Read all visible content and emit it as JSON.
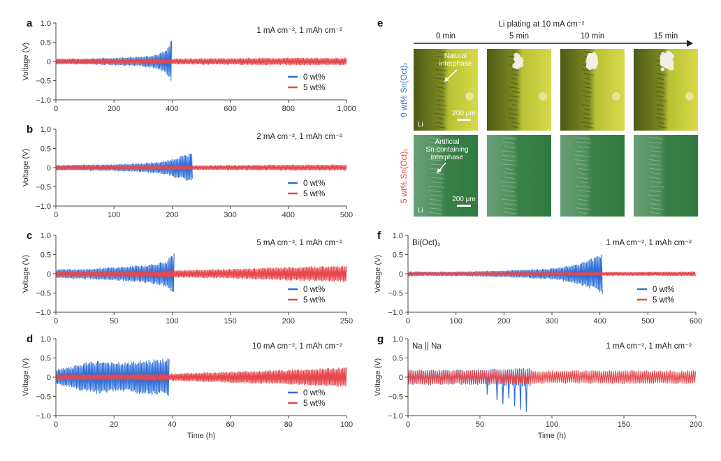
{
  "colors": {
    "blue": "#2f6fd8",
    "red": "#e5484d",
    "axis": "#444444"
  },
  "chart_data": [
    {
      "panel": "a",
      "type": "line",
      "condition": "1 mA cm⁻², 1 mAh cm⁻²",
      "ylabel": "Voltage (V)",
      "xlabel": "",
      "xlim": [
        0,
        1000
      ],
      "ylim": [
        -1.0,
        1.0
      ],
      "xticks": [
        "0",
        "200",
        "400",
        "600",
        "800",
        "1,000"
      ],
      "yticks": [
        "−1.0",
        "−0.5",
        "0",
        "0.5",
        "1.0"
      ],
      "series": [
        {
          "name": "0 wt%",
          "color": "blue",
          "envelope": [
            [
              0,
              0.06
            ],
            [
              100,
              0.08
            ],
            [
              200,
              0.1
            ],
            [
              300,
              0.14
            ],
            [
              350,
              0.2
            ],
            [
              380,
              0.3
            ],
            [
              395,
              0.55
            ],
            [
              400,
              0.6
            ]
          ]
        },
        {
          "name": "5 wt%",
          "color": "red",
          "envelope": [
            [
              0,
              0.08
            ],
            [
              200,
              0.08
            ],
            [
              400,
              0.08
            ],
            [
              600,
              0.09
            ],
            [
              800,
              0.1
            ],
            [
              1000,
              0.1
            ]
          ]
        }
      ]
    },
    {
      "panel": "b",
      "type": "line",
      "condition": "2 mA cm⁻², 1 mAh cm⁻²",
      "ylabel": "Voltage (V)",
      "xlabel": "",
      "xlim": [
        0,
        500
      ],
      "ylim": [
        -1.0,
        1.0
      ],
      "xticks": [
        "0",
        "100",
        "200",
        "300",
        "400",
        "500"
      ],
      "yticks": [
        "−1.0",
        "−0.5",
        "0",
        "0.5",
        "1.0"
      ],
      "series": [
        {
          "name": "0 wt%",
          "color": "blue",
          "envelope": [
            [
              0,
              0.07
            ],
            [
              100,
              0.09
            ],
            [
              150,
              0.12
            ],
            [
              190,
              0.18
            ],
            [
              210,
              0.3
            ],
            [
              235,
              0.38
            ]
          ]
        },
        {
          "name": "5 wt%",
          "color": "red",
          "envelope": [
            [
              0,
              0.06
            ],
            [
              200,
              0.06
            ],
            [
              300,
              0.07
            ],
            [
              400,
              0.08
            ],
            [
              500,
              0.08
            ]
          ]
        }
      ]
    },
    {
      "panel": "c",
      "type": "line",
      "condition": "5 mA cm⁻², 1 mAh cm⁻²",
      "ylabel": "Voltage (V)",
      "xlabel": "",
      "xlim": [
        0,
        250
      ],
      "ylim": [
        -1.0,
        1.0
      ],
      "xticks": [
        "0",
        "50",
        "100",
        "150",
        "200",
        "250"
      ],
      "yticks": [
        "−1.0",
        "−0.5",
        "0",
        "0.5",
        "1.0"
      ],
      "series": [
        {
          "name": "0 wt%",
          "color": "blue",
          "envelope": [
            [
              0,
              0.12
            ],
            [
              30,
              0.14
            ],
            [
              60,
              0.2
            ],
            [
              80,
              0.25
            ],
            [
              95,
              0.35
            ],
            [
              100,
              0.5
            ],
            [
              102,
              0.55
            ]
          ]
        },
        {
          "name": "5 wt%",
          "color": "red",
          "envelope": [
            [
              0,
              0.08
            ],
            [
              50,
              0.08
            ],
            [
              100,
              0.1
            ],
            [
              150,
              0.13
            ],
            [
              200,
              0.18
            ],
            [
              250,
              0.22
            ]
          ]
        }
      ]
    },
    {
      "panel": "d",
      "type": "line",
      "condition": "10 mA cm⁻², 1 mAh cm⁻²",
      "ylabel": "Voltage (V)",
      "xlabel": "Time (h)",
      "xlim": [
        0,
        100
      ],
      "ylim": [
        -1.0,
        1.0
      ],
      "xticks": [
        "0",
        "20",
        "40",
        "60",
        "80",
        "100"
      ],
      "yticks": [
        "−1.0",
        "−0.5",
        "0",
        "0.5",
        "1.0"
      ],
      "series": [
        {
          "name": "0 wt%",
          "color": "blue",
          "envelope": [
            [
              0,
              0.2
            ],
            [
              5,
              0.28
            ],
            [
              10,
              0.38
            ],
            [
              15,
              0.45
            ],
            [
              20,
              0.38
            ],
            [
              25,
              0.4
            ],
            [
              30,
              0.45
            ],
            [
              35,
              0.48
            ],
            [
              39,
              0.5
            ]
          ]
        },
        {
          "name": "5 wt%",
          "color": "red",
          "envelope": [
            [
              0,
              0.08
            ],
            [
              20,
              0.08
            ],
            [
              40,
              0.1
            ],
            [
              60,
              0.15
            ],
            [
              80,
              0.2
            ],
            [
              100,
              0.26
            ]
          ]
        }
      ]
    },
    {
      "panel": "f",
      "type": "line",
      "condition": "1 mA cm⁻², 1 mAh cm⁻²",
      "inner_label": "Bi(Oct)₃",
      "ylabel": "Voltage (V)",
      "xlabel": "",
      "xlim": [
        0,
        600
      ],
      "ylim": [
        -1.0,
        1.0
      ],
      "xticks": [
        "0",
        "100",
        "200",
        "300",
        "400",
        "500",
        "600"
      ],
      "yticks": [
        "−1.0",
        "−0.5",
        "0",
        "0.5",
        "1.0"
      ],
      "series": [
        {
          "name": "0 wt%",
          "color": "blue",
          "envelope": [
            [
              0,
              0.06
            ],
            [
              100,
              0.06
            ],
            [
              200,
              0.09
            ],
            [
              300,
              0.15
            ],
            [
              350,
              0.25
            ],
            [
              390,
              0.45
            ],
            [
              405,
              0.58
            ]
          ]
        },
        {
          "name": "5 wt%",
          "color": "red",
          "envelope": [
            [
              0,
              0.05
            ],
            [
              300,
              0.05
            ],
            [
              600,
              0.06
            ]
          ]
        }
      ]
    },
    {
      "panel": "g",
      "type": "line",
      "condition": "1 mA cm⁻², 1 mAh cm⁻²",
      "inner_label": "Na || Na",
      "ylabel": "Voltage (V)",
      "xlabel": "Time (h)",
      "xlim": [
        0,
        200
      ],
      "ylim": [
        -1.0,
        1.0
      ],
      "xticks": [
        "0",
        "50",
        "100",
        "150",
        "200"
      ],
      "yticks": [
        "−1.0",
        "−0.5",
        "0",
        "0.5",
        "1.0"
      ],
      "series": [
        {
          "name": "0 wt%",
          "color": "blue",
          "envelope": [
            [
              0,
              0.2
            ],
            [
              40,
              0.2
            ],
            [
              60,
              0.22
            ],
            [
              85,
              0.25
            ]
          ],
          "spikes": [
            [
              55,
              -0.45
            ],
            [
              62,
              -0.6
            ],
            [
              66,
              -0.7
            ],
            [
              70,
              -0.55
            ],
            [
              74,
              -0.75
            ],
            [
              78,
              -0.85
            ],
            [
              82,
              -0.9
            ]
          ]
        },
        {
          "name": "5 wt%",
          "color": "red",
          "envelope": [
            [
              0,
              0.2
            ],
            [
              100,
              0.18
            ],
            [
              200,
              0.18
            ]
          ]
        }
      ]
    }
  ],
  "legend": {
    "items": [
      "0 wt%",
      "5 wt%"
    ]
  },
  "panel_e": {
    "letter": "e",
    "title": "Li plating at 10 mA cm⁻²",
    "times": [
      "0 min",
      "5 min",
      "10 min",
      "15 min"
    ],
    "row_labels": [
      "0 wt% Sn(Oct)₂",
      "5 wt% Sn(Oct)₂"
    ],
    "row1_note": "Natural interphase",
    "row2_note": "Artificial Sn-containing interphase",
    "scale_bar": "200 μm",
    "li_label": "Li"
  }
}
